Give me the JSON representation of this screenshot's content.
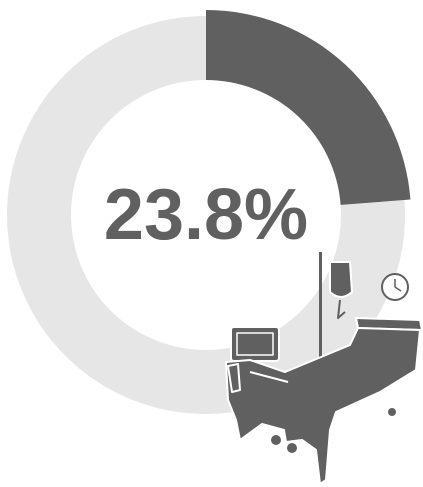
{
  "chart_data": {
    "type": "donut",
    "values": [
      23.8
    ],
    "value_labels": [
      "23.8%"
    ],
    "color": "#606060",
    "track_color": "#e6e6e6"
  }
}
